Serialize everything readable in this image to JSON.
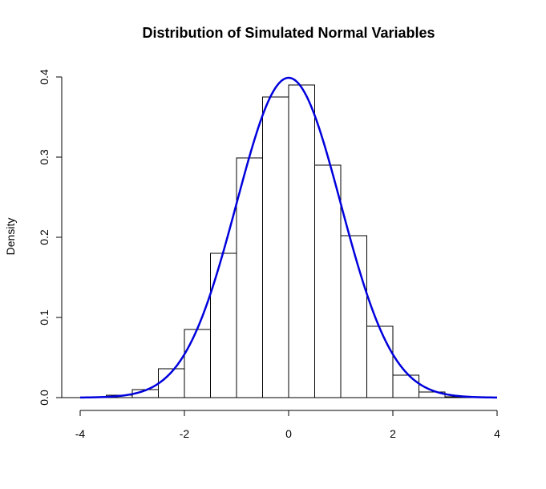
{
  "chart_data": {
    "type": "bar",
    "title": "Distribution of Simulated Normal Variables",
    "xlabel": "",
    "ylabel": "Density",
    "xlim": [
      -4,
      4
    ],
    "ylim": [
      0,
      0.4
    ],
    "x_ticks": [
      "-4",
      "-2",
      "0",
      "2",
      "4"
    ],
    "y_ticks": [
      "0.0",
      "0.1",
      "0.2",
      "0.3",
      "0.4"
    ],
    "grid": false,
    "bin_width": 0.5,
    "bins": [
      {
        "start": -3.5,
        "end": -3.0,
        "density": 0.003
      },
      {
        "start": -3.0,
        "end": -2.5,
        "density": 0.01
      },
      {
        "start": -2.5,
        "end": -2.0,
        "density": 0.036
      },
      {
        "start": -2.0,
        "end": -1.5,
        "density": 0.085
      },
      {
        "start": -1.5,
        "end": -1.0,
        "density": 0.18
      },
      {
        "start": -1.0,
        "end": -0.5,
        "density": 0.299
      },
      {
        "start": -0.5,
        "end": 0.0,
        "density": 0.375
      },
      {
        "start": 0.0,
        "end": 0.5,
        "density": 0.39
      },
      {
        "start": 0.5,
        "end": 1.0,
        "density": 0.29
      },
      {
        "start": 1.0,
        "end": 1.5,
        "density": 0.202
      },
      {
        "start": 1.5,
        "end": 2.0,
        "density": 0.089
      },
      {
        "start": 2.0,
        "end": 2.5,
        "density": 0.028
      },
      {
        "start": 2.5,
        "end": 3.0,
        "density": 0.007
      },
      {
        "start": 3.0,
        "end": 3.5,
        "density": 0.001
      }
    ],
    "overlay": {
      "type": "line",
      "function": "normal density",
      "mean": 0,
      "sd": 1,
      "x_range": [
        -4,
        4
      ],
      "color": "#0000dd"
    },
    "colors": {
      "bar_fill": "#ffffff",
      "bar_stroke": "#000000",
      "curve": "#0000dd"
    }
  }
}
